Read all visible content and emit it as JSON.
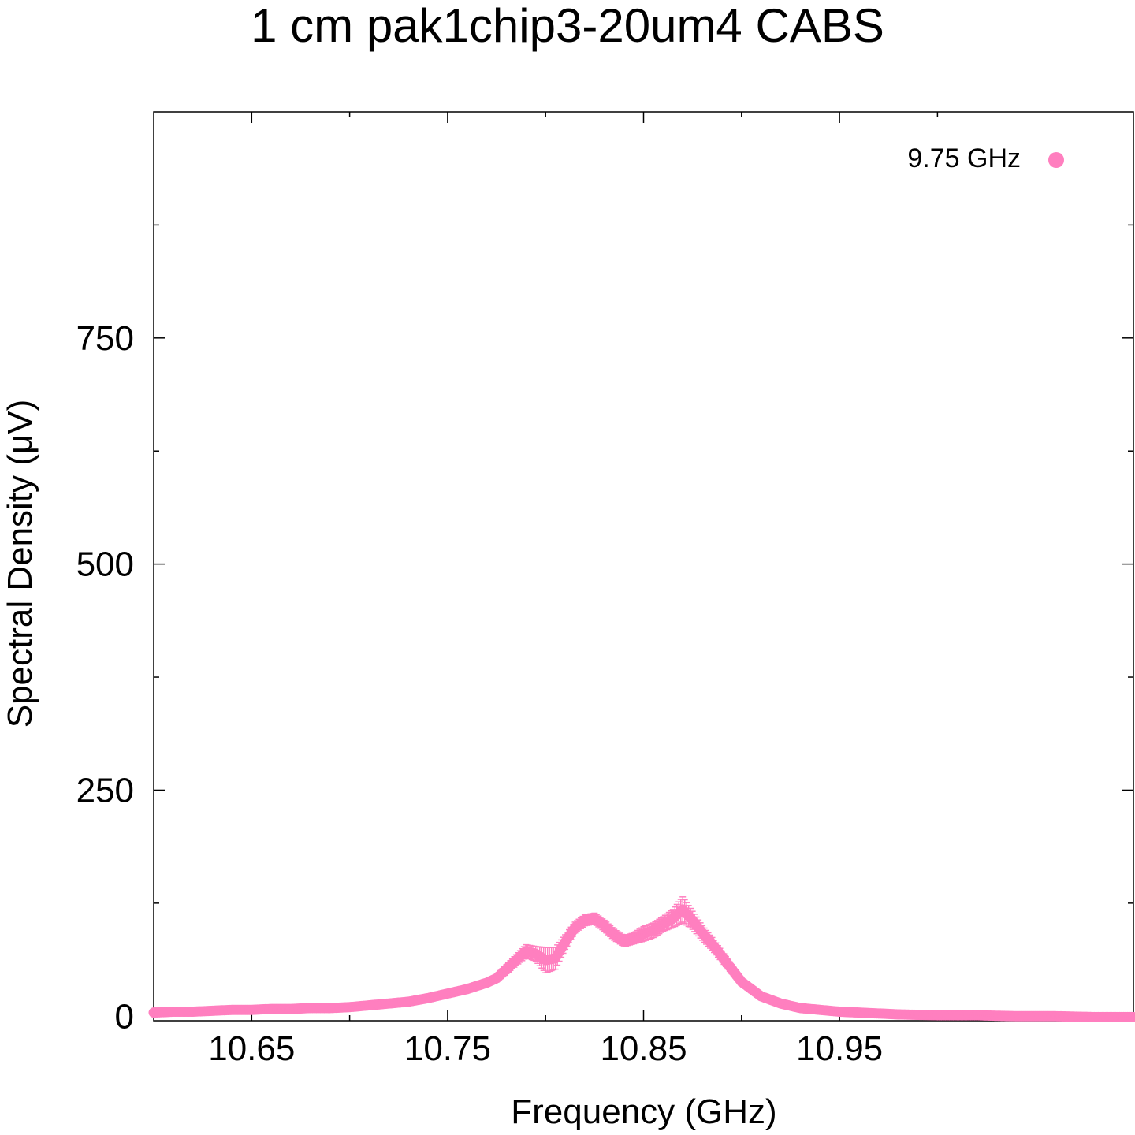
{
  "chart_data": {
    "type": "scatter",
    "title": "1 cm pak1chip3-20um4 CABS",
    "xlabel": "Frequency (GHz)",
    "ylabel": "Spectral Density (μV)",
    "xlim": [
      10.6,
      11.1
    ],
    "ylim": [
      -5,
      1000
    ],
    "x_ticks": [
      {
        "value": 10.65,
        "label": "10.65"
      },
      {
        "value": 10.75,
        "label": "10.75"
      },
      {
        "value": 10.85,
        "label": "10.85"
      },
      {
        "value": 10.95,
        "label": "10.95"
      }
    ],
    "x_minor_ticks": [
      10.7,
      10.8,
      10.9,
      11.0
    ],
    "y_ticks": [
      {
        "value": 0,
        "label": "0"
      },
      {
        "value": 250,
        "label": "250"
      },
      {
        "value": 500,
        "label": "500"
      },
      {
        "value": 750,
        "label": "750"
      }
    ],
    "y_minor_ticks": [
      125,
      375,
      625,
      875
    ],
    "grid": false,
    "legend_position": "top-right",
    "series": [
      {
        "name": "9.75 GHz",
        "color": "#ff7fbf",
        "points": [
          [
            10.6,
            4,
            2
          ],
          [
            10.61,
            5,
            2
          ],
          [
            10.62,
            5,
            2
          ],
          [
            10.63,
            6,
            2
          ],
          [
            10.64,
            7,
            2
          ],
          [
            10.65,
            7,
            2
          ],
          [
            10.66,
            8,
            2
          ],
          [
            10.67,
            8,
            2
          ],
          [
            10.68,
            9,
            2
          ],
          [
            10.69,
            9,
            2
          ],
          [
            10.7,
            10,
            2
          ],
          [
            10.71,
            12,
            2
          ],
          [
            10.72,
            14,
            2
          ],
          [
            10.73,
            16,
            3
          ],
          [
            10.74,
            20,
            3
          ],
          [
            10.75,
            25,
            3
          ],
          [
            10.76,
            30,
            3
          ],
          [
            10.77,
            37,
            4
          ],
          [
            10.775,
            42,
            4
          ],
          [
            10.78,
            52,
            5
          ],
          [
            10.785,
            62,
            6
          ],
          [
            10.79,
            72,
            7
          ],
          [
            10.795,
            69,
            8
          ],
          [
            10.8,
            62,
            14
          ],
          [
            10.805,
            64,
            12
          ],
          [
            10.81,
            82,
            8
          ],
          [
            10.815,
            98,
            6
          ],
          [
            10.82,
            106,
            6
          ],
          [
            10.825,
            108,
            6
          ],
          [
            10.83,
            100,
            6
          ],
          [
            10.835,
            90,
            6
          ],
          [
            10.84,
            83,
            6
          ],
          [
            10.845,
            86,
            6
          ],
          [
            10.85,
            91,
            8
          ],
          [
            10.855,
            95,
            8
          ],
          [
            10.86,
            102,
            8
          ],
          [
            10.865,
            108,
            10
          ],
          [
            10.87,
            118,
            14
          ],
          [
            10.875,
            106,
            10
          ],
          [
            10.88,
            92,
            8
          ],
          [
            10.885,
            80,
            7
          ],
          [
            10.89,
            66,
            6
          ],
          [
            10.895,
            52,
            5
          ],
          [
            10.9,
            38,
            4
          ],
          [
            10.91,
            22,
            3
          ],
          [
            10.92,
            14,
            3
          ],
          [
            10.93,
            9,
            2
          ],
          [
            10.94,
            7,
            2
          ],
          [
            10.95,
            5,
            2
          ],
          [
            10.96,
            4,
            2
          ],
          [
            10.98,
            2,
            1
          ],
          [
            11.0,
            1,
            1
          ],
          [
            11.02,
            1,
            1
          ],
          [
            11.04,
            0,
            1
          ],
          [
            11.06,
            0,
            1
          ],
          [
            11.08,
            -1,
            1
          ],
          [
            11.1,
            -1,
            1
          ]
        ]
      }
    ]
  }
}
